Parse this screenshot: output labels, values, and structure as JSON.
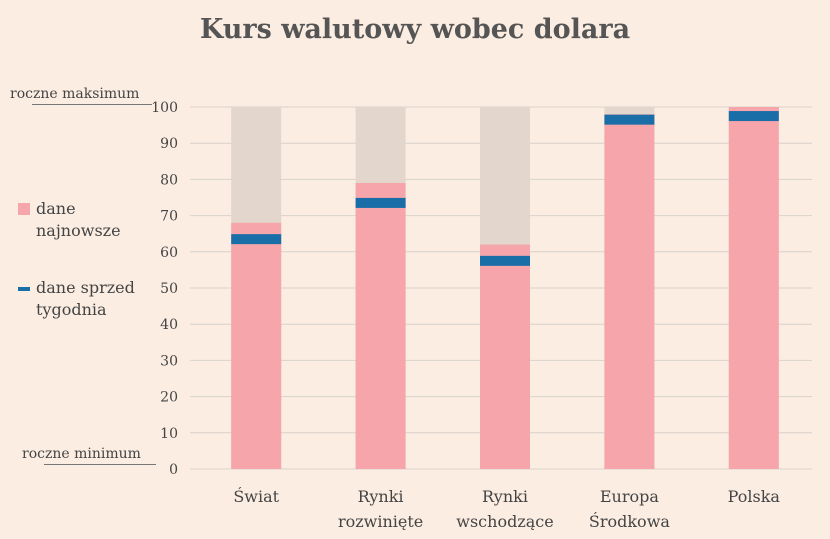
{
  "title": "Kurs walutowy wobec dolara",
  "legend": {
    "latest": "dane\nnajnowsze",
    "latest_l1": "dane",
    "latest_l2": "najnowsze",
    "week_l1": "dane sprzed",
    "week_l2": "tygodnia"
  },
  "extremes": {
    "max_label": "roczne maksimum",
    "min_label": "roczne minimum"
  },
  "colors": {
    "background": "#fbede2",
    "range_bar": "#e3d6cc",
    "latest_bar": "#f6a5ab",
    "week_marker": "#1a6ea8",
    "grid": "#d9d2cc"
  },
  "chart_data": {
    "type": "bar",
    "title": "Kurs walutowy wobec dolara",
    "categories": [
      "Świat",
      "Rynki\nrozwinięte",
      "Rynki\nwschodzące",
      "Europa\nŚrodkowa",
      "Polska"
    ],
    "category_lines": [
      [
        "Świat"
      ],
      [
        "Rynki",
        "rozwinięte"
      ],
      [
        "Rynki",
        "wschodzące"
      ],
      [
        "Europa",
        "Środkowa"
      ],
      [
        "Polska"
      ]
    ],
    "series": [
      {
        "name": "dane najnowsze",
        "values": [
          68,
          79,
          62,
          98,
          100
        ]
      },
      {
        "name": "dane sprzed tygodnia",
        "values": [
          63.5,
          73.5,
          57.5,
          96.5,
          97.5
        ]
      }
    ],
    "range_max": 100,
    "ylim": [
      0,
      100
    ],
    "yticks": [
      0,
      10,
      20,
      30,
      40,
      50,
      60,
      70,
      80,
      90,
      100
    ],
    "grid": true,
    "legend_position": "left"
  }
}
